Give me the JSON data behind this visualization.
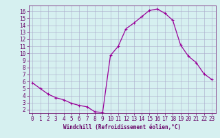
{
  "x": [
    0,
    1,
    2,
    3,
    4,
    5,
    6,
    7,
    8,
    9,
    10,
    11,
    12,
    13,
    14,
    15,
    16,
    17,
    18,
    19,
    20,
    21,
    22,
    23
  ],
  "y": [
    5.8,
    5.0,
    4.2,
    3.7,
    3.4,
    2.9,
    2.6,
    2.4,
    1.7,
    1.6,
    9.7,
    11.0,
    13.5,
    14.3,
    15.2,
    16.1,
    16.3,
    15.7,
    14.7,
    11.2,
    9.6,
    8.7,
    7.1,
    6.3
  ],
  "line_color": "#990099",
  "marker": "+",
  "marker_size": 3,
  "marker_linewidth": 0.8,
  "bg_color": "#d6f0f0",
  "grid_color": "#aaaacc",
  "xlabel": "Windchill (Refroidissement éolien,°C)",
  "xlabel_fontsize": 5.5,
  "ylim": [
    1.5,
    16.8
  ],
  "xlim": [
    -0.5,
    23.5
  ],
  "yticks": [
    2,
    3,
    4,
    5,
    6,
    7,
    8,
    9,
    10,
    11,
    12,
    13,
    14,
    15,
    16
  ],
  "xticks": [
    0,
    1,
    2,
    3,
    4,
    5,
    6,
    7,
    8,
    9,
    10,
    11,
    12,
    13,
    14,
    15,
    16,
    17,
    18,
    19,
    20,
    21,
    22,
    23
  ],
  "tick_fontsize": 5.5,
  "axis_color": "#660066",
  "linewidth": 0.9
}
